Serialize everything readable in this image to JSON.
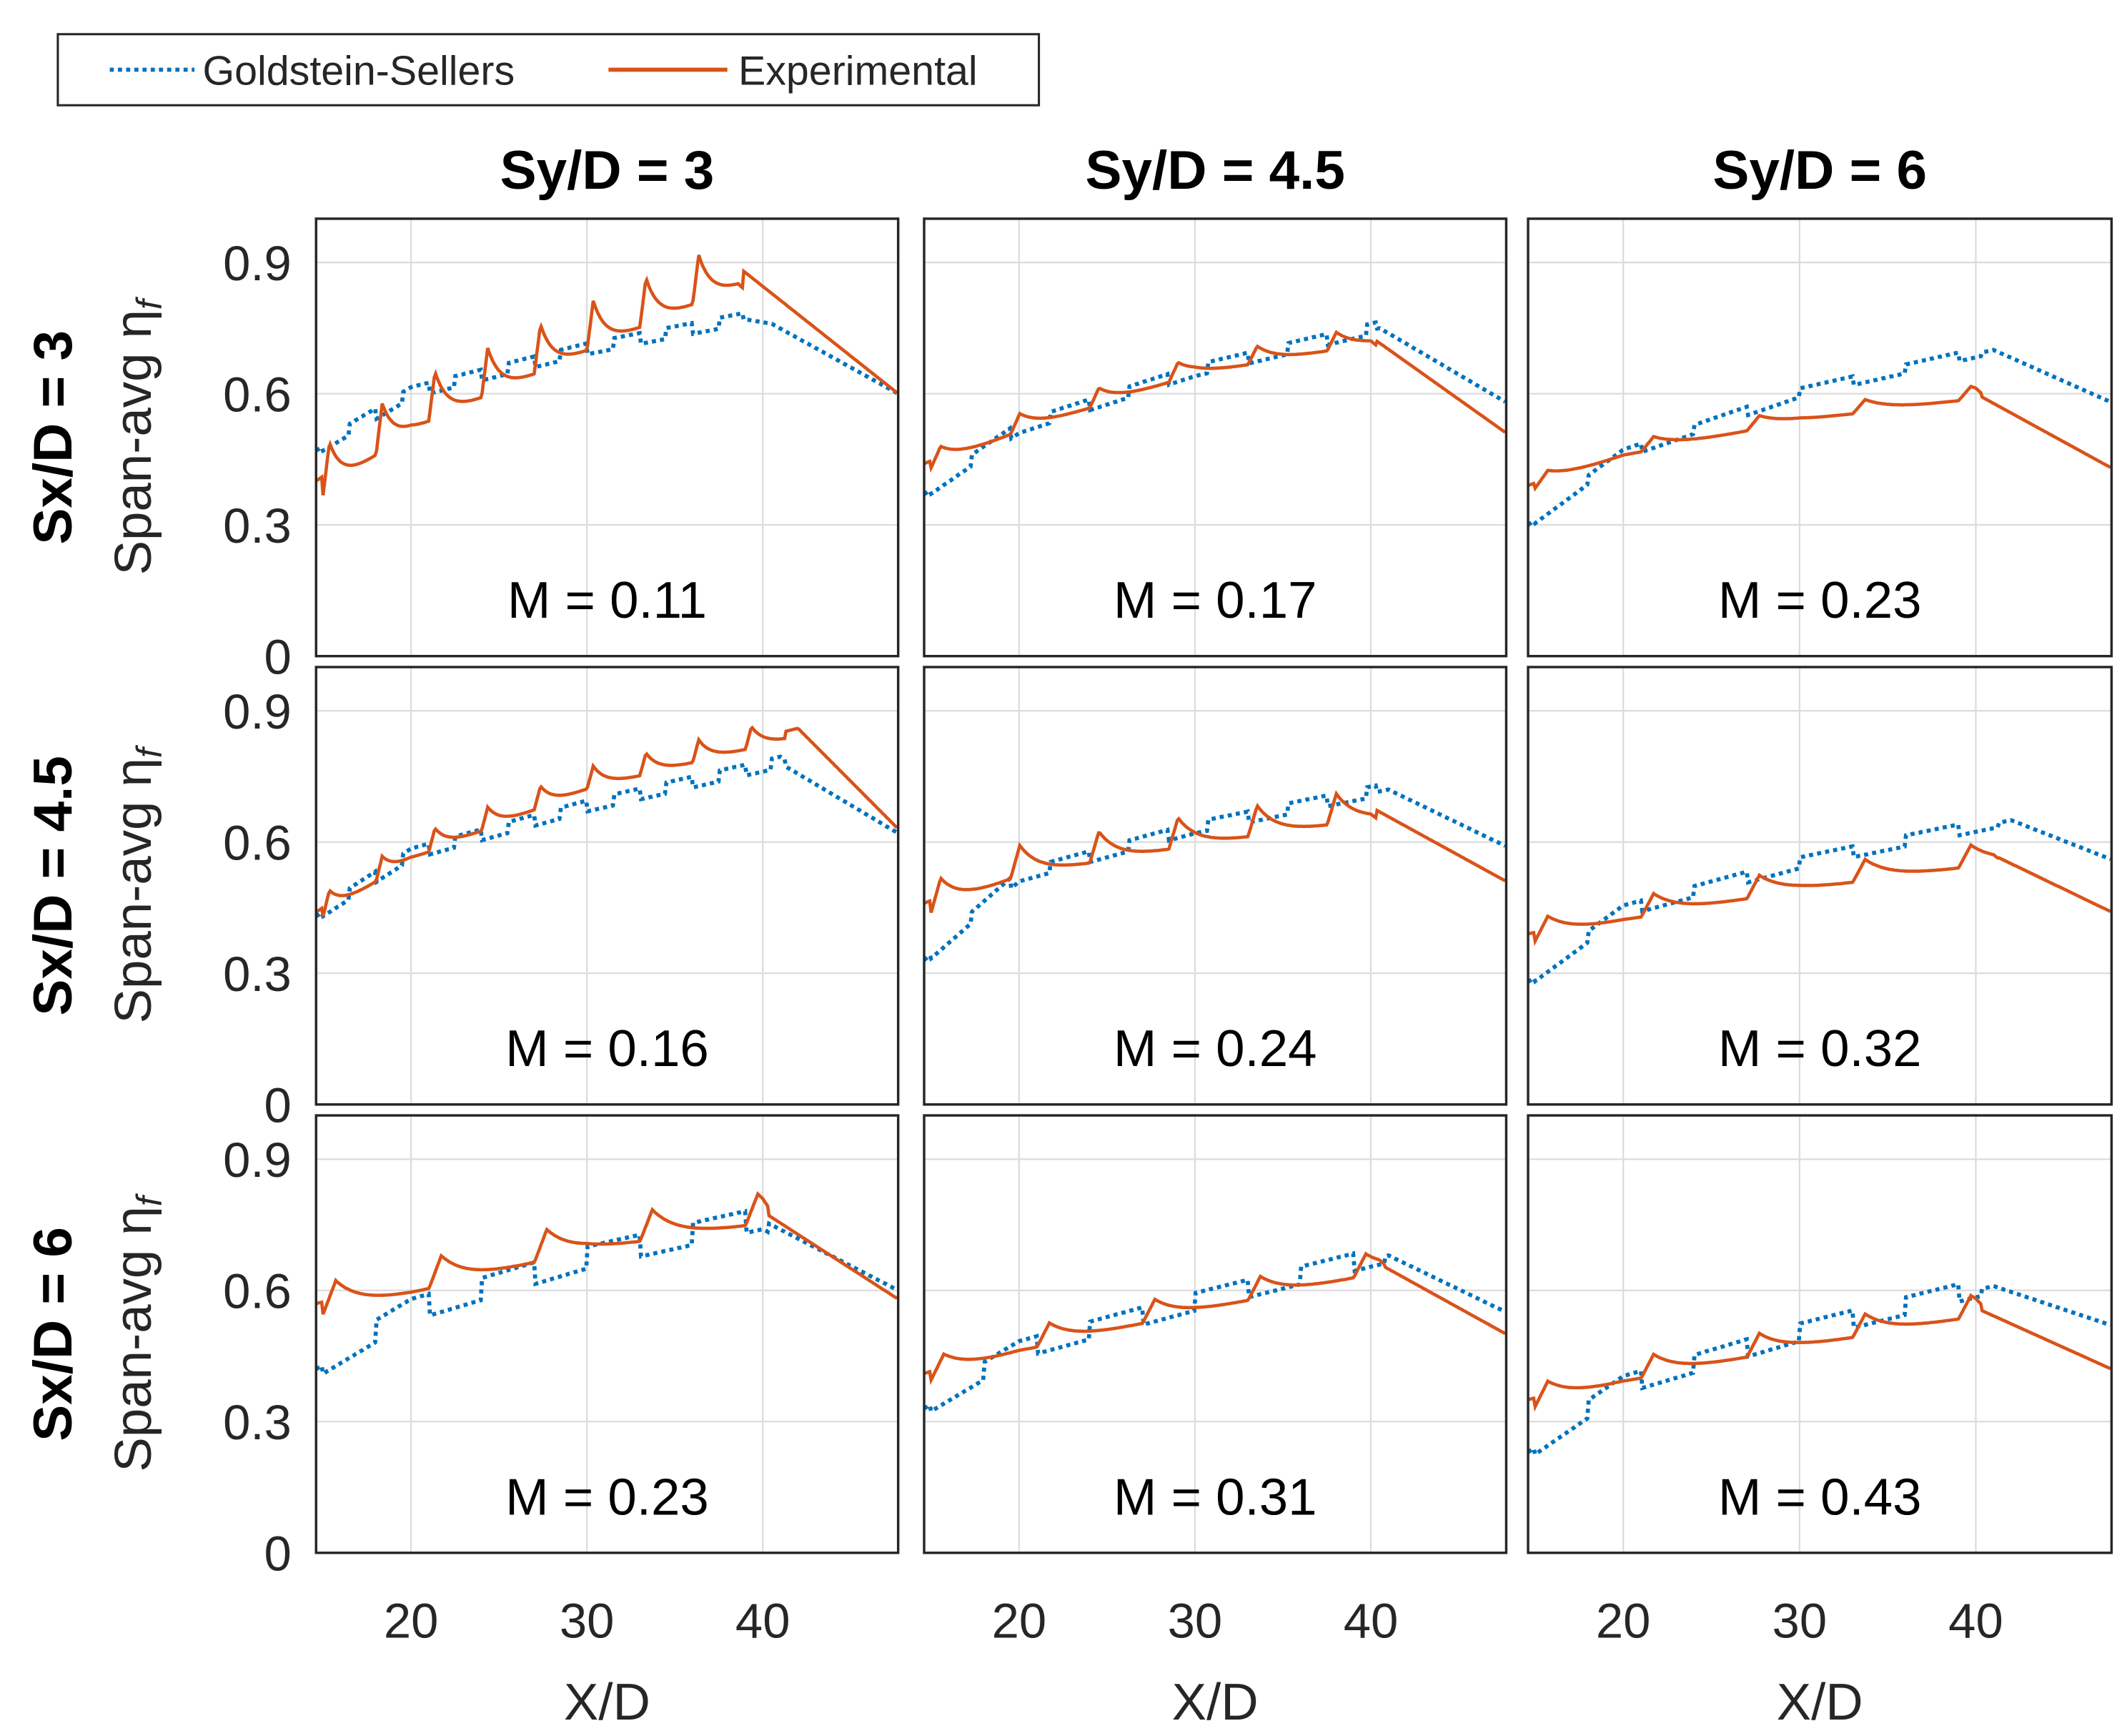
{
  "chart_data": {
    "type": "line",
    "legend": {
      "position": "top-left",
      "entries": [
        "Goldstein-Sellers",
        "Experimental"
      ]
    },
    "colors": {
      "Goldstein-Sellers": "#0072BD",
      "Experimental": "#D95319"
    },
    "column_titles": [
      "Sy/D = 3",
      "Sy/D = 4.5",
      "Sy/D = 6"
    ],
    "row_labels": [
      "Sx/D = 3",
      "Sx/D = 4.5",
      "Sx/D = 6"
    ],
    "ylabel": "Span-avg η",
    "ylabel_sub": "f",
    "xlabel": "X/D",
    "xlim": [
      14.6,
      47.7
    ],
    "ylim": [
      0,
      1
    ],
    "xticks": [
      "20",
      "30",
      "40"
    ],
    "xtick_values": [
      20,
      30,
      40
    ],
    "yticks": [
      "0",
      "0.3",
      "0.6",
      "0.9"
    ],
    "ytick_values": [
      0,
      0.3,
      0.6,
      0.9
    ],
    "grid": true,
    "panels": [
      {
        "row": 0,
        "col": 0,
        "label": "M = 0.11",
        "period": 3,
        "hole_range": [
          15,
          38.6
        ],
        "experimental": {
          "trend": [
            [
              14.6,
              0.4
            ],
            [
              20,
              0.56
            ],
            [
              30,
              0.74
            ],
            [
              38.6,
              0.89
            ],
            [
              47.7,
              0.6
            ]
          ],
          "ripple": 0.11
        },
        "goldstein": {
          "trend": [
            [
              14.6,
              0.47
            ],
            [
              20,
              0.6
            ],
            [
              30,
              0.7
            ],
            [
              39,
              0.77
            ],
            [
              40.5,
              0.76
            ],
            [
              47.7,
              0.6
            ]
          ],
          "ripple": 0.025
        }
      },
      {
        "row": 0,
        "col": 1,
        "label": "M = 0.17",
        "period": 4.5,
        "hole_range": [
          15,
          40
        ],
        "experimental": {
          "trend": [
            [
              14.6,
              0.44
            ],
            [
              20,
              0.53
            ],
            [
              30,
              0.66
            ],
            [
              40,
              0.73
            ],
            [
              47.7,
              0.51
            ]
          ],
          "ripple": 0.04
        },
        "goldstein": {
          "trend": [
            [
              14.6,
              0.37
            ],
            [
              20,
              0.52
            ],
            [
              30,
              0.65
            ],
            [
              40.5,
              0.75
            ],
            [
              47.7,
              0.58
            ]
          ],
          "ripple": 0.025
        }
      },
      {
        "row": 0,
        "col": 2,
        "label": "M = 0.23",
        "period": 6,
        "hole_range": [
          15,
          40
        ],
        "experimental": {
          "trend": [
            [
              14.6,
              0.39
            ],
            [
              20,
              0.47
            ],
            [
              30,
              0.55
            ],
            [
              40,
              0.6
            ],
            [
              47.7,
              0.43
            ]
          ],
          "ripple": 0.03
        },
        "goldstein": {
          "trend": [
            [
              14.6,
              0.3
            ],
            [
              20,
              0.46
            ],
            [
              30,
              0.6
            ],
            [
              41,
              0.7
            ],
            [
              47.7,
              0.58
            ]
          ],
          "ripple": 0.02
        }
      },
      {
        "row": 1,
        "col": 0,
        "label": "M = 0.16",
        "period": 3,
        "hole_range": [
          15,
          41
        ],
        "experimental": {
          "trend": [
            [
              14.6,
              0.44
            ],
            [
              20,
              0.58
            ],
            [
              30,
              0.74
            ],
            [
              41,
              0.85
            ],
            [
              42,
              0.86
            ],
            [
              47.7,
              0.63
            ]
          ],
          "ripple": 0.05
        },
        "goldstein": {
          "trend": [
            [
              14.6,
              0.43
            ],
            [
              20,
              0.57
            ],
            [
              30,
              0.68
            ],
            [
              41,
              0.78
            ],
            [
              47.7,
              0.62
            ]
          ],
          "ripple": 0.025
        }
      },
      {
        "row": 1,
        "col": 1,
        "label": "M = 0.24",
        "period": 4.5,
        "hole_range": [
          15,
          40
        ],
        "experimental": {
          "trend": [
            [
              14.6,
              0.46
            ],
            [
              20,
              0.55
            ],
            [
              30,
              0.62
            ],
            [
              40,
              0.68
            ],
            [
              47.7,
              0.51
            ]
          ],
          "ripple": 0.07
        },
        "goldstein": {
          "trend": [
            [
              14.6,
              0.33
            ],
            [
              20,
              0.52
            ],
            [
              30,
              0.63
            ],
            [
              41,
              0.72
            ],
            [
              47.7,
              0.59
            ]
          ],
          "ripple": 0.025
        }
      },
      {
        "row": 1,
        "col": 2,
        "label": "M = 0.32",
        "period": 6,
        "hole_range": [
          15,
          41
        ],
        "experimental": {
          "trend": [
            [
              14.6,
              0.39
            ],
            [
              20,
              0.44
            ],
            [
              30,
              0.51
            ],
            [
              41,
              0.57
            ],
            [
              47.7,
              0.44
            ]
          ],
          "ripple": 0.05
        },
        "goldstein": {
          "trend": [
            [
              14.6,
              0.28
            ],
            [
              20,
              0.44
            ],
            [
              30,
              0.55
            ],
            [
              42,
              0.65
            ],
            [
              47.7,
              0.56
            ]
          ],
          "ripple": 0.025
        }
      },
      {
        "row": 2,
        "col": 0,
        "label": "M = 0.23",
        "period": 6,
        "hole_range": [
          15,
          40
        ],
        "experimental": {
          "trend": [
            [
              14.6,
              0.57
            ],
            [
              20,
              0.62
            ],
            [
              30,
              0.72
            ],
            [
              40,
              0.78
            ],
            [
              47.7,
              0.58
            ]
          ],
          "ripple": 0.07
        },
        "goldstein": {
          "trend": [
            [
              14.6,
              0.42
            ],
            [
              20,
              0.55
            ],
            [
              30,
              0.67
            ],
            [
              40,
              0.76
            ],
            [
              47.7,
              0.6
            ]
          ],
          "ripple": 0.05
        }
      },
      {
        "row": 2,
        "col": 1,
        "label": "M = 0.31",
        "period": 6,
        "hole_range": [
          15,
          40.5
        ],
        "experimental": {
          "trend": [
            [
              14.6,
              0.41
            ],
            [
              20,
              0.48
            ],
            [
              30,
              0.57
            ],
            [
              40.5,
              0.66
            ],
            [
              47.7,
              0.5
            ]
          ],
          "ripple": 0.05
        },
        "goldstein": {
          "trend": [
            [
              14.6,
              0.33
            ],
            [
              20,
              0.46
            ],
            [
              30,
              0.57
            ],
            [
              41,
              0.68
            ],
            [
              47.7,
              0.55
            ]
          ],
          "ripple": 0.04
        }
      },
      {
        "row": 2,
        "col": 2,
        "label": "M = 0.43",
        "period": 6,
        "hole_range": [
          15,
          40
        ],
        "experimental": {
          "trend": [
            [
              14.6,
              0.35
            ],
            [
              20,
              0.41
            ],
            [
              30,
              0.49
            ],
            [
              40,
              0.56
            ],
            [
              47.7,
              0.42
            ]
          ],
          "ripple": 0.05
        },
        "goldstein": {
          "trend": [
            [
              14.6,
              0.23
            ],
            [
              20,
              0.38
            ],
            [
              30,
              0.5
            ],
            [
              41,
              0.61
            ],
            [
              47.7,
              0.52
            ]
          ],
          "ripple": 0.04
        }
      }
    ]
  }
}
